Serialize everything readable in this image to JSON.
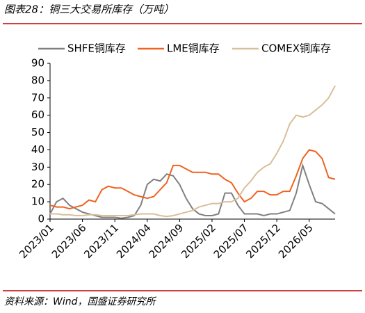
{
  "chart_data": {
    "type": "line",
    "title": "图表28：铜三大交易所库存（万吨）",
    "source": "资料来源：Wind，国盛证券研究所",
    "x": [
      0,
      1,
      2,
      3,
      4,
      5,
      6,
      7,
      8,
      9,
      10,
      11,
      12,
      13,
      14,
      15,
      16,
      17,
      18,
      19,
      20,
      21,
      22,
      23,
      24,
      25,
      26,
      27,
      28,
      29,
      30,
      31,
      32,
      33,
      34,
      35,
      36,
      37,
      38,
      39,
      40,
      41,
      42,
      43,
      44
    ],
    "xlim": [
      0,
      44
    ],
    "xticks": [
      {
        "value": 0,
        "label": "2023/01"
      },
      {
        "value": 5,
        "label": "2023/06"
      },
      {
        "value": 10,
        "label": "2023/11"
      },
      {
        "value": 15,
        "label": "2024/04"
      },
      {
        "value": 20,
        "label": "2024/09"
      },
      {
        "value": 25,
        "label": "2025/02"
      },
      {
        "value": 30,
        "label": "2025/07"
      },
      {
        "value": 35,
        "label": "2025/12"
      },
      {
        "value": 40,
        "label": "2026/05"
      }
    ],
    "ylim": [
      0,
      90
    ],
    "yticks": [
      0,
      10,
      20,
      30,
      40,
      50,
      60,
      70,
      80,
      90
    ],
    "series": [
      {
        "name": "SHFE铜库存",
        "color": "#808080",
        "values": [
          3,
          10,
          12,
          8,
          6,
          4,
          3,
          2,
          1,
          1,
          1,
          0.5,
          1,
          2,
          8,
          20,
          23,
          22,
          26,
          25,
          20,
          12,
          6,
          3,
          2,
          2,
          3,
          15,
          15,
          8,
          3,
          3,
          3,
          2,
          3,
          3,
          4,
          5,
          15,
          31,
          20,
          10,
          9,
          6,
          3
        ]
      },
      {
        "name": "LME铜库存",
        "color": "#f0621f",
        "values": [
          8,
          7,
          7,
          6,
          7,
          8,
          11,
          10,
          17,
          19,
          18,
          18,
          16,
          14,
          13,
          12,
          13,
          17,
          21,
          31,
          31,
          29,
          27,
          27,
          27,
          26,
          26,
          23,
          21,
          15,
          10,
          12,
          16,
          16,
          14,
          14,
          16,
          16,
          25,
          35,
          40,
          39,
          35,
          24,
          23
        ]
      },
      {
        "name": "COMEX铜库存",
        "color": "#d9bf9a",
        "values": [
          3,
          3,
          2.5,
          2.5,
          2,
          2,
          2.5,
          2.5,
          2,
          2,
          2,
          2,
          2,
          2.5,
          3,
          3,
          3,
          2,
          1.5,
          2,
          3,
          4,
          5,
          7,
          8,
          9,
          9,
          10,
          10,
          12,
          18,
          22,
          27,
          30,
          32,
          38,
          45,
          55,
          60,
          59,
          60,
          63,
          66,
          70,
          77
        ]
      }
    ]
  }
}
